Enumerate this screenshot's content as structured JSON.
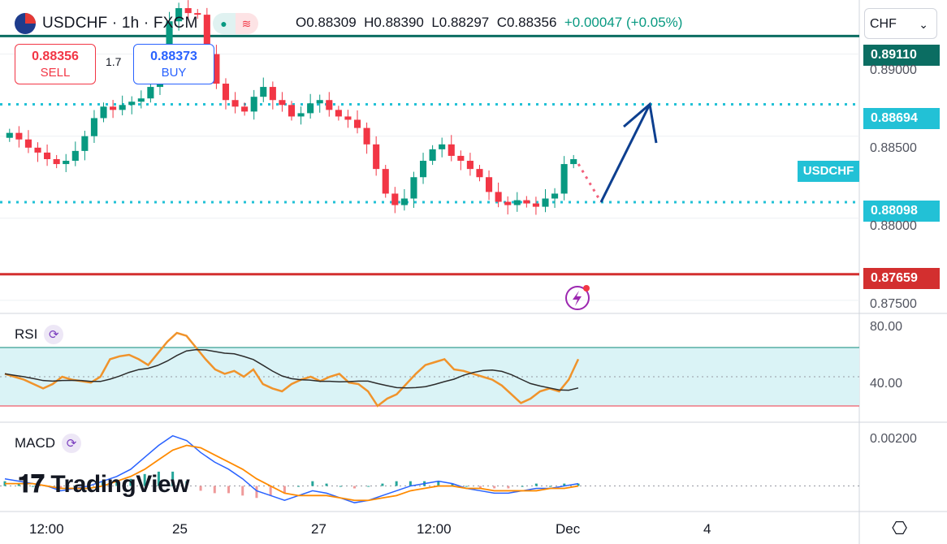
{
  "header": {
    "symbol": "USDCHF · 1h · FXCM",
    "ohlc": {
      "o": "O0.88309",
      "h": "H0.88390",
      "l": "L0.88297",
      "c": "C0.88356",
      "chg": "+0.00047 (+0.05%)"
    },
    "pill_icons": [
      "dot-icon",
      "wave-icon"
    ]
  },
  "trade": {
    "sell_price": "0.88356",
    "sell_label": "SELL",
    "buy_price": "0.88373",
    "buy_label": "BUY",
    "spread": "1.7"
  },
  "currency_selector": {
    "value": "CHF",
    "chevron": "⌄"
  },
  "price_labels": {
    "l1": "0.89110",
    "l2": "0.88694",
    "l3": "0.88098",
    "l4": "0.87659",
    "symbol_tag": "USDCHF"
  },
  "y_axis_ticks": [
    "0.89000",
    "0.88500",
    "0.88000",
    "0.87500"
  ],
  "rsi": {
    "label": "RSI",
    "ticks": [
      "80.00",
      "40.00"
    ]
  },
  "macd": {
    "label": "MACD",
    "ticks": [
      "0.00200"
    ]
  },
  "x_axis": [
    "12:00",
    "25",
    "27",
    "12:00",
    "Dec",
    "4"
  ],
  "watermark": "TradingView",
  "colors": {
    "up": "#089981",
    "down": "#f23645",
    "level_teal": "#0b6d62",
    "level_red": "#d32f2f",
    "dotted": "#22c1d6",
    "arrow": "#0d3f8f",
    "rsi_line": "#f0932b",
    "rsi_ma": "#2c2c2c",
    "rsi_band": "#daf3f6",
    "macd_line": "#2962ff",
    "signal_line": "#ff8a00"
  },
  "chart_data": {
    "type": "candlestick",
    "symbol": "USDCHF",
    "timeframe": "1h",
    "price_range": [
      0.8742,
      0.893
    ],
    "levels": [
      0.8911,
      0.88694,
      0.88098,
      0.87659
    ],
    "trend_close": [
      0.8852,
      0.8848,
      0.8843,
      0.884,
      0.8836,
      0.8833,
      0.8835,
      0.8841,
      0.885,
      0.8861,
      0.8868,
      0.8866,
      0.8869,
      0.8871,
      0.8873,
      0.888,
      0.8902,
      0.892,
      0.8928,
      0.8925,
      0.8924,
      0.89,
      0.8882,
      0.8872,
      0.8868,
      0.8865,
      0.8874,
      0.888,
      0.8872,
      0.8869,
      0.8862,
      0.8864,
      0.887,
      0.8872,
      0.8866,
      0.8862,
      0.886,
      0.8855,
      0.8845,
      0.883,
      0.8815,
      0.8808,
      0.8812,
      0.8825,
      0.8835,
      0.8842,
      0.8845,
      0.8838,
      0.8835,
      0.883,
      0.8825,
      0.8816,
      0.881,
      0.8808,
      0.8811,
      0.8809,
      0.8807,
      0.8812,
      0.8815,
      0.8833,
      0.8836
    ],
    "rsi": {
      "ylim": [
        20,
        90
      ],
      "upper": 70,
      "lower": 30,
      "values": [
        52,
        50,
        48,
        45,
        42,
        45,
        50,
        48,
        47,
        46,
        50,
        62,
        64,
        65,
        62,
        58,
        66,
        74,
        80,
        78,
        70,
        62,
        55,
        52,
        54,
        50,
        55,
        45,
        42,
        40,
        45,
        48,
        50,
        47,
        50,
        52,
        46,
        45,
        40,
        30,
        35,
        38,
        45,
        52,
        58,
        60,
        62,
        55,
        54,
        52,
        50,
        48,
        44,
        38,
        32,
        35,
        40,
        42,
        40,
        48,
        62
      ]
    },
    "macd": {
      "ylim": [
        -0.001,
        0.0026
      ],
      "macd": [
        0.0003,
        0.0002,
        0.0001,
        0.0,
        -0.0002,
        -0.0001,
        0.0,
        0.0002,
        0.0004,
        0.0007,
        0.0012,
        0.0017,
        0.0021,
        0.0019,
        0.0014,
        0.001,
        0.0007,
        0.0003,
        -0.0002,
        -0.0004,
        -0.0006,
        -0.0004,
        -0.0002,
        -0.0003,
        -0.0005,
        -0.0007,
        -0.0006,
        -0.0004,
        -0.0002,
        0.0,
        0.0001,
        0.0002,
        0.0001,
        -0.0001,
        -0.0002,
        -0.0003,
        -0.0003,
        -0.0002,
        -0.0001,
        -0.0001,
        0.0,
        0.0001
      ],
      "signal": [
        0.0001,
        0.0001,
        0.0001,
        0.0,
        -0.0001,
        -0.0001,
        -0.0001,
        0.0,
        0.0002,
        0.0004,
        0.0007,
        0.0011,
        0.0015,
        0.0017,
        0.0016,
        0.0013,
        0.001,
        0.0007,
        0.0003,
        0.0,
        -0.0003,
        -0.0004,
        -0.0004,
        -0.0004,
        -0.0005,
        -0.0006,
        -0.0006,
        -0.0005,
        -0.0004,
        -0.0002,
        -0.0001,
        0.0,
        0.0,
        -0.0001,
        -0.0001,
        -0.0002,
        -0.0002,
        -0.0002,
        -0.0002,
        -0.0001,
        -0.0001,
        0.0
      ]
    }
  }
}
